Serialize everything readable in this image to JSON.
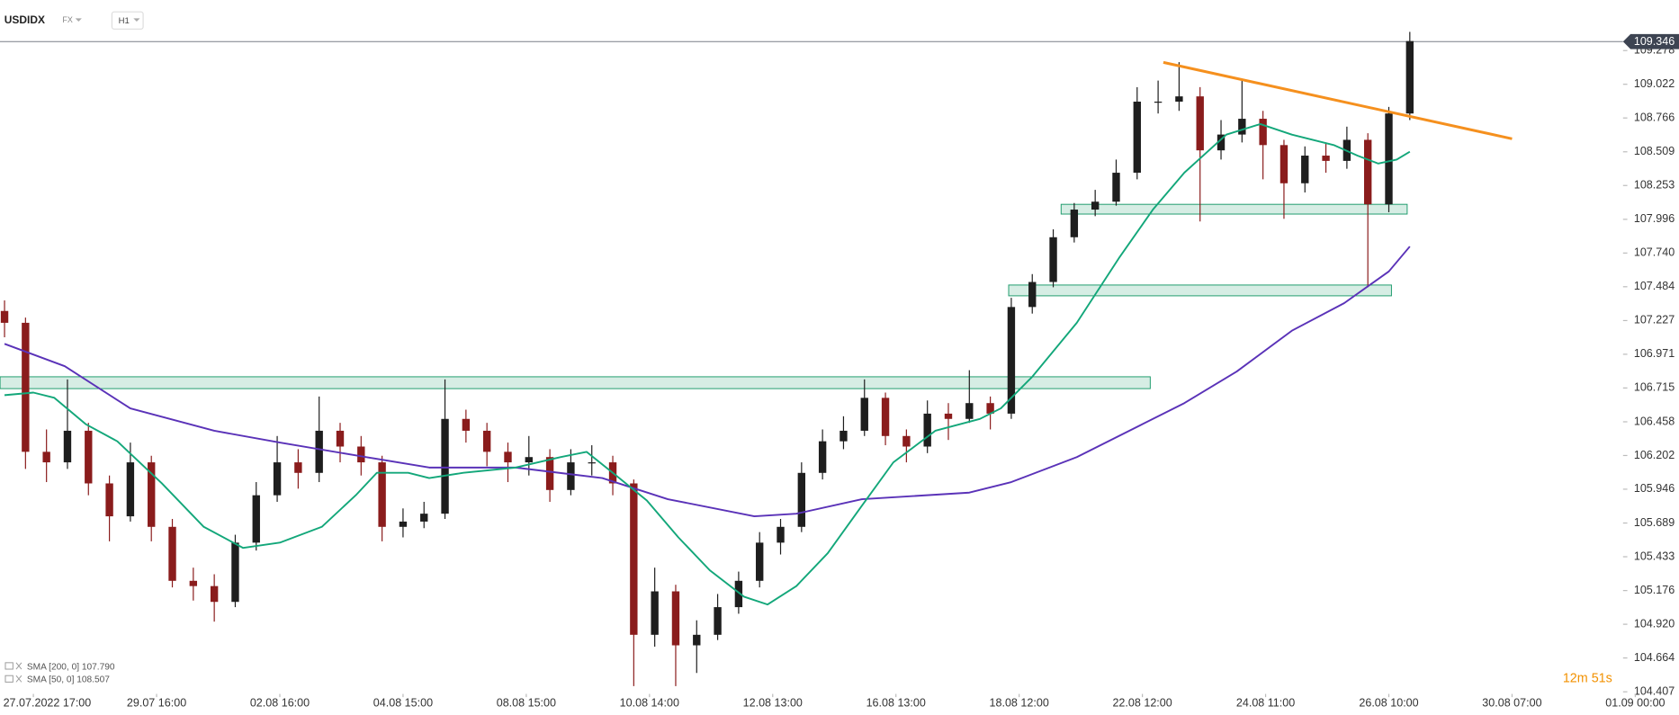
{
  "header": {
    "symbol": "USDIDX",
    "market": "FX",
    "interval": "H1"
  },
  "status": {
    "countdown": "12m 51s"
  },
  "chart_data": {
    "type": "candlestick",
    "up_color": "#1e1e1e",
    "down_color": "#8a1c1c",
    "x": [
      -11,
      -3,
      5,
      13,
      21,
      29,
      37,
      45,
      53,
      61,
      69,
      77,
      85,
      93,
      101,
      109,
      117,
      125,
      133,
      141,
      149,
      157,
      165,
      173,
      181,
      189,
      197,
      205,
      213,
      221,
      229,
      237,
      245,
      253,
      261,
      269,
      277,
      285,
      293,
      301,
      309,
      317,
      325,
      333,
      341,
      349,
      357,
      365,
      373,
      381,
      389,
      397,
      405,
      413,
      421,
      429,
      437,
      445,
      453,
      461,
      469,
      477,
      485,
      493,
      501,
      509,
      517,
      525
    ],
    "open": [
      107.3,
      107.21,
      106.23,
      106.15,
      106.39,
      105.99,
      105.74,
      106.15,
      105.66,
      105.25,
      105.21,
      105.09,
      105.54,
      105.9,
      106.15,
      106.07,
      106.39,
      106.27,
      106.15,
      105.66,
      105.7,
      105.76,
      106.48,
      106.39,
      106.23,
      106.15,
      106.19,
      105.94,
      106.15,
      106.15,
      105.99,
      104.84,
      105.17,
      104.76,
      104.84,
      105.05,
      105.25,
      105.54,
      105.66,
      106.07,
      106.31,
      106.39,
      106.64,
      106.35,
      106.27,
      106.52,
      106.48,
      106.6,
      106.52,
      107.33,
      107.52,
      107.86,
      108.07,
      108.13,
      108.35,
      108.89,
      108.89,
      108.93,
      108.52,
      108.64,
      108.76,
      108.56,
      108.27,
      108.48,
      108.44,
      108.6,
      108.11,
      108.8
    ],
    "high": [
      107.38,
      107.25,
      106.4,
      106.78,
      106.45,
      106.05,
      106.3,
      106.2,
      105.72,
      105.35,
      105.3,
      105.6,
      106.0,
      106.35,
      106.25,
      106.65,
      106.45,
      106.35,
      106.2,
      105.8,
      105.85,
      106.78,
      106.55,
      106.45,
      106.3,
      106.35,
      106.25,
      106.25,
      106.28,
      106.2,
      106.02,
      105.35,
      105.22,
      104.95,
      105.15,
      105.32,
      105.62,
      105.72,
      106.15,
      106.4,
      106.5,
      106.78,
      106.68,
      106.4,
      106.62,
      106.6,
      106.85,
      106.65,
      107.4,
      107.58,
      107.92,
      108.12,
      108.22,
      108.45,
      109.0,
      109.05,
      109.19,
      109.0,
      108.75,
      109.05,
      108.82,
      108.6,
      108.55,
      108.58,
      108.7,
      108.65,
      108.85,
      109.42
    ],
    "low": [
      107.1,
      106.1,
      106.0,
      106.1,
      105.9,
      105.55,
      105.7,
      105.55,
      105.2,
      105.1,
      104.94,
      105.05,
      105.48,
      105.85,
      105.95,
      106.0,
      106.15,
      106.05,
      105.55,
      105.58,
      105.65,
      105.72,
      106.3,
      106.12,
      106.0,
      106.05,
      105.85,
      105.9,
      106.05,
      105.9,
      104.45,
      104.75,
      104.45,
      104.55,
      104.8,
      105.0,
      105.2,
      105.45,
      105.62,
      106.02,
      106.25,
      106.35,
      106.28,
      106.15,
      106.22,
      106.32,
      106.45,
      106.4,
      106.48,
      107.28,
      107.48,
      107.82,
      108.02,
      108.1,
      108.3,
      108.8,
      108.82,
      107.98,
      108.45,
      108.58,
      108.3,
      108.0,
      108.2,
      108.35,
      108.38,
      107.48,
      108.05,
      108.75
    ],
    "close": [
      107.21,
      106.23,
      106.15,
      106.39,
      105.99,
      105.74,
      106.15,
      105.66,
      105.25,
      105.21,
      105.09,
      105.54,
      105.9,
      106.15,
      106.07,
      106.39,
      106.27,
      106.15,
      105.66,
      105.7,
      105.76,
      106.48,
      106.39,
      106.23,
      106.15,
      106.19,
      105.94,
      106.15,
      106.15,
      105.99,
      104.84,
      105.17,
      104.76,
      104.84,
      105.05,
      105.25,
      105.54,
      105.66,
      106.07,
      106.31,
      106.39,
      106.64,
      106.35,
      106.27,
      106.52,
      106.48,
      106.6,
      106.52,
      107.33,
      107.52,
      107.86,
      108.07,
      108.13,
      108.35,
      108.89,
      108.89,
      108.93,
      108.52,
      108.64,
      108.76,
      108.56,
      108.27,
      108.48,
      108.44,
      108.6,
      108.11,
      108.8,
      109.35
    ],
    "lines": [
      {
        "name": "SMA [200, 0] 107.790",
        "color": "#5a32b8",
        "x": [
          -11,
          12,
          37,
          69,
          94,
          127,
          151,
          184,
          217,
          242,
          275,
          291,
          316,
          357,
          373,
          398,
          422,
          439,
          459,
          480,
          500,
          517,
          525
        ],
        "values": [
          107.05,
          106.88,
          106.56,
          106.39,
          106.3,
          106.19,
          106.11,
          106.11,
          106.03,
          105.87,
          105.74,
          105.76,
          105.87,
          105.92,
          106.0,
          106.19,
          106.43,
          106.6,
          106.84,
          107.15,
          107.36,
          107.6,
          107.79
        ]
      },
      {
        "name": "SMA [50, 0] 108.507",
        "color": "#13a77a",
        "x": [
          -11,
          0,
          8,
          20,
          32,
          49,
          65,
          80,
          94,
          110,
          123,
          131,
          143,
          151,
          164,
          184,
          201,
          211,
          221,
          234,
          246,
          258,
          271,
          280,
          291,
          303,
          316,
          328,
          344,
          361,
          369,
          381,
          398,
          414,
          427,
          439,
          455,
          468,
          480,
          496,
          505,
          513,
          520,
          525
        ],
        "values": [
          106.66,
          106.68,
          106.64,
          106.44,
          106.31,
          105.99,
          105.66,
          105.5,
          105.54,
          105.66,
          105.9,
          106.07,
          106.07,
          106.03,
          106.07,
          106.11,
          106.19,
          106.23,
          106.07,
          105.86,
          105.58,
          105.33,
          105.13,
          105.07,
          105.21,
          105.46,
          105.82,
          106.15,
          106.39,
          106.48,
          106.56,
          106.8,
          107.21,
          107.7,
          108.07,
          108.35,
          108.64,
          108.72,
          108.64,
          108.56,
          108.48,
          108.42,
          108.45,
          108.51
        ]
      }
    ],
    "trendline": {
      "color": "#f5901e",
      "x": [
        431,
        564
      ],
      "values": [
        109.188,
        108.608
      ]
    },
    "zones": [
      {
        "color": "#1a9a6a",
        "x": [
          -12.7,
          426
        ],
        "values": [
          106.71,
          106.8
        ]
      },
      {
        "color": "#1a9a6a",
        "x": [
          372,
          518
        ],
        "values": [
          107.415,
          107.497
        ]
      },
      {
        "color": "#1a9a6a",
        "x": [
          392,
          524
        ],
        "values": [
          108.036,
          108.11
        ]
      }
    ],
    "last_price": 109.346,
    "xlim": [
      -12.73,
      605.1
    ],
    "xticks": [
      {
        "value": 0,
        "label": "27.07.2022 17:00"
      },
      {
        "value": 47,
        "label": "29.07 16:00"
      },
      {
        "value": 94,
        "label": "02.08 16:00"
      },
      {
        "value": 141,
        "label": "04.08 15:00"
      },
      {
        "value": 188,
        "label": "08.08 15:00"
      },
      {
        "value": 235,
        "label": "10.08 14:00"
      },
      {
        "value": 282,
        "label": "12.08 13:00"
      },
      {
        "value": 329,
        "label": "16.08 13:00"
      },
      {
        "value": 376,
        "label": "18.08 12:00"
      },
      {
        "value": 423,
        "label": "22.08 12:00"
      },
      {
        "value": 470,
        "label": "24.08 11:00"
      },
      {
        "value": 517,
        "label": "26.08 10:00"
      },
      {
        "value": 564,
        "label": "30.08 07:00"
      },
      {
        "value": 611,
        "label": "01.09 00:00"
      }
    ],
    "ylim": [
      104.391,
      109.662
    ],
    "yticks": [
      109.278,
      109.022,
      108.766,
      108.509,
      108.253,
      107.996,
      {
        "value": 107.74,
        "label": "107.740"
      },
      107.484,
      107.227,
      106.971,
      106.715,
      106.458,
      106.202,
      105.946,
      105.689,
      105.433,
      105.176,
      {
        "value": 104.92,
        "label": "104.920"
      },
      104.664,
      104.407
    ]
  }
}
